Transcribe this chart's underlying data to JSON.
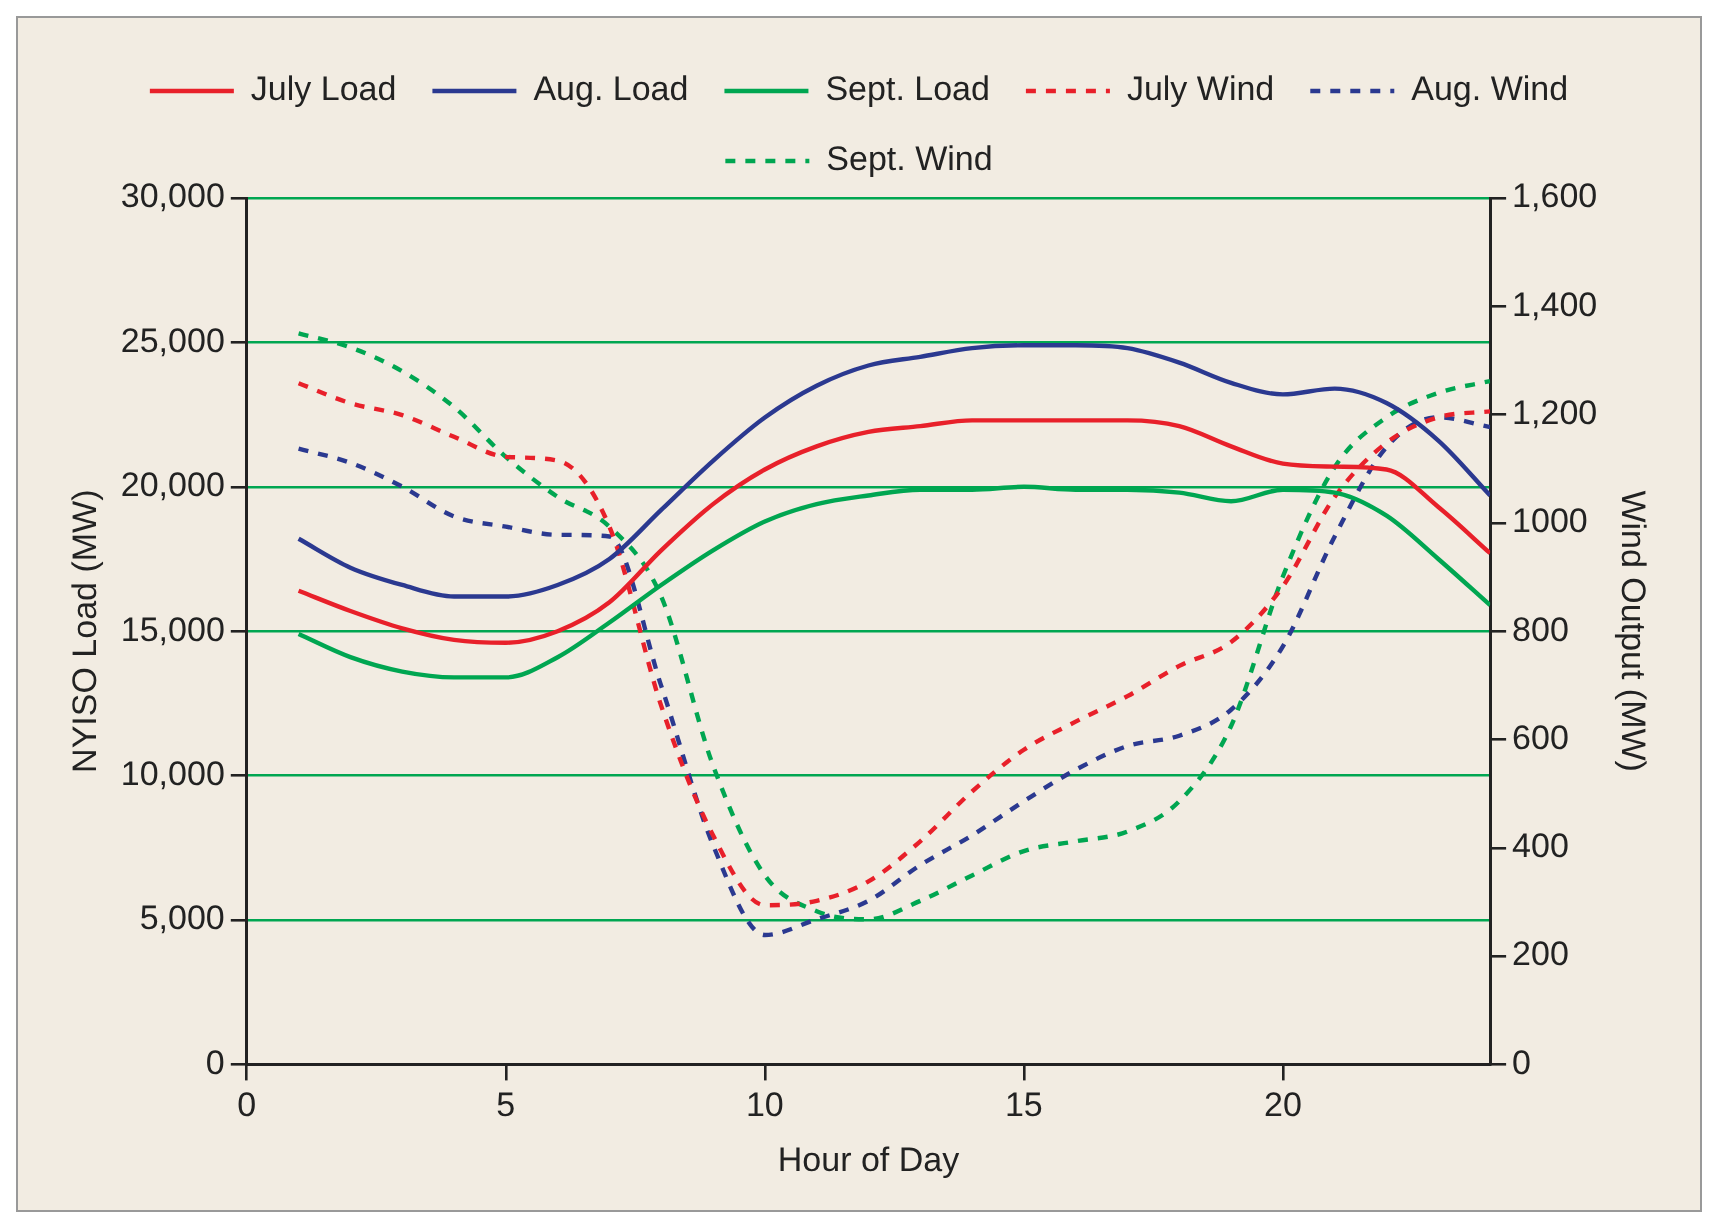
{
  "chart_data": {
    "type": "line",
    "xlabel": "Hour of Day",
    "ylabel": "NYISO Load (MW)",
    "y2label": "Wind Output (MW)",
    "x": [
      1,
      2,
      3,
      4,
      5,
      6,
      7,
      8,
      9,
      10,
      11,
      12,
      13,
      14,
      15,
      16,
      17,
      18,
      19,
      20,
      21,
      22,
      23,
      24
    ],
    "xlim": [
      0,
      24
    ],
    "xticks": [
      0,
      5,
      10,
      15,
      20
    ],
    "ylim": [
      0,
      30000
    ],
    "yticks": [
      0,
      {
        "value": 5000,
        "label": "5,000"
      },
      {
        "value": 10000,
        "label": "10,000"
      },
      {
        "value": 15000,
        "label": "15,000"
      },
      {
        "value": 20000,
        "label": "20,000"
      },
      {
        "value": 25000,
        "label": "25,000"
      },
      {
        "value": 30000,
        "label": "30,000"
      }
    ],
    "y2lim": [
      0,
      1600
    ],
    "y2ticks": [
      0,
      200,
      400,
      600,
      800,
      1000,
      {
        "value": 1200,
        "label": "1,200"
      },
      {
        "value": 1400,
        "label": "1,400"
      },
      {
        "value": 1600,
        "label": "1,600"
      }
    ],
    "grid": "y",
    "legend": "top",
    "marker": "none",
    "series": [
      {
        "name": "July Load",
        "color": "#e8202a",
        "line_style": "solid",
        "values": [
          16400,
          15700,
          15100,
          14700,
          14600,
          15000,
          16000,
          17800,
          19400,
          20600,
          21400,
          21900,
          22100,
          22300,
          22300,
          22300,
          22300,
          22100,
          21400,
          20800,
          20700,
          20600,
          19300,
          17700
        ]
      },
      {
        "name": "Aug. Load",
        "color": "#2b3990",
        "line_style": "solid",
        "values": [
          18200,
          17200,
          16600,
          16200,
          16200,
          16600,
          17500,
          19200,
          20900,
          22400,
          23500,
          24200,
          24500,
          24800,
          24900,
          24900,
          24800,
          24300,
          23600,
          23200,
          23400,
          22900,
          21600,
          19700
        ]
      },
      {
        "name": "Sept. Load",
        "color": "#00a651",
        "line_style": "solid",
        "values": [
          14900,
          14100,
          13600,
          13400,
          13400,
          14100,
          15300,
          16600,
          17800,
          18800,
          19400,
          19700,
          19900,
          19900,
          20000,
          19900,
          19900,
          19800,
          19500,
          19900,
          19800,
          19000,
          17500,
          15900
        ]
      },
      {
        "name": "July Wind",
        "color": "#e8202a",
        "line_style": "dashed",
        "axis": "y2",
        "values": [
          1258,
          1221,
          1199,
          1159,
          1122,
          1115,
          993,
          662,
          423,
          294,
          302,
          338,
          412,
          504,
          581,
          633,
          680,
          736,
          780,
          883,
          1048,
          1148,
          1195,
          1206
        ]
      },
      {
        "name": "Aug. Wind",
        "color": "#2b3990",
        "line_style": "dashed",
        "axis": "y2",
        "values": [
          1137,
          1111,
          1067,
          1012,
          993,
          978,
          975,
          699,
          405,
          239,
          268,
          302,
          368,
          423,
          486,
          544,
          588,
          607,
          655,
          772,
          975,
          1140,
          1195,
          1177
        ]
      },
      {
        "name": "Sept. Wind",
        "color": "#00a651",
        "line_style": "dashed",
        "axis": "y2",
        "values": [
          1350,
          1324,
          1280,
          1214,
          1122,
          1048,
          993,
          864,
          552,
          349,
          283,
          268,
          302,
          349,
          394,
          412,
          430,
          486,
          625,
          901,
          1103,
          1195,
          1240,
          1262
        ]
      }
    ]
  }
}
